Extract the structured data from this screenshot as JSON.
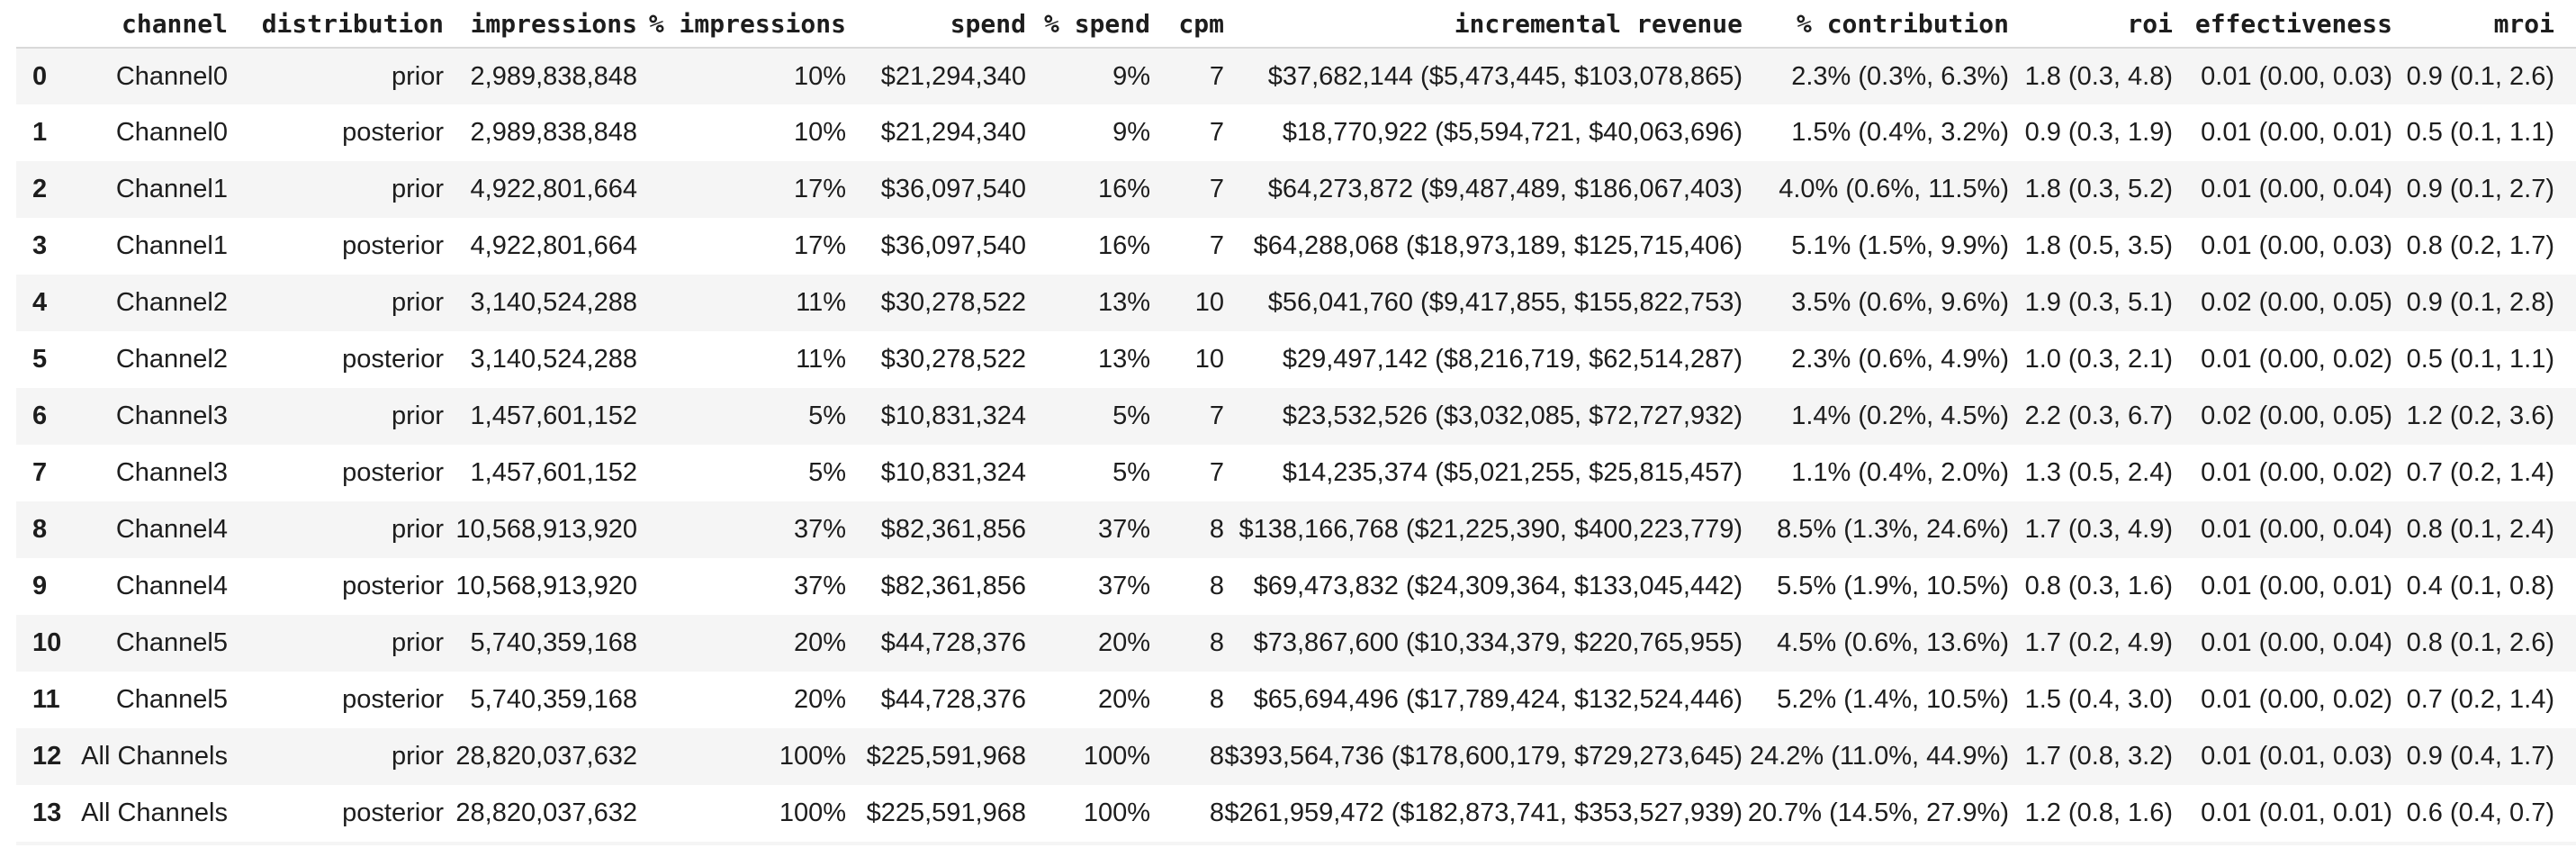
{
  "table": {
    "columns": [
      {
        "key": "index",
        "label": "",
        "align": "left"
      },
      {
        "key": "channel",
        "label": "channel",
        "align": "right"
      },
      {
        "key": "distribution",
        "label": "distribution",
        "align": "right"
      },
      {
        "key": "impressions",
        "label": "impressions",
        "align": "right"
      },
      {
        "key": "pct-impressions",
        "label": "% impressions",
        "align": "right"
      },
      {
        "key": "spend",
        "label": "spend",
        "align": "right"
      },
      {
        "key": "pct-spend",
        "label": "% spend",
        "align": "right"
      },
      {
        "key": "cpm",
        "label": "cpm",
        "align": "right"
      },
      {
        "key": "incremental-revenue",
        "label": "incremental revenue",
        "align": "right"
      },
      {
        "key": "pct-contribution",
        "label": "% contribution",
        "align": "right"
      },
      {
        "key": "roi",
        "label": "roi",
        "align": "right"
      },
      {
        "key": "effectiveness",
        "label": "effectiveness",
        "align": "right"
      },
      {
        "key": "mroi",
        "label": "mroi",
        "align": "right"
      }
    ],
    "rows": [
      [
        "0",
        "Channel0",
        "prior",
        "2,989,838,848",
        "10%",
        "$21,294,340",
        "9%",
        "7",
        "$37,682,144 ($5,473,445, $103,078,865)",
        "2.3% (0.3%, 6.3%)",
        "1.8 (0.3, 4.8)",
        "0.01 (0.00, 0.03)",
        "0.9 (0.1, 2.6)"
      ],
      [
        "1",
        "Channel0",
        "posterior",
        "2,989,838,848",
        "10%",
        "$21,294,340",
        "9%",
        "7",
        "$18,770,922 ($5,594,721, $40,063,696)",
        "1.5% (0.4%, 3.2%)",
        "0.9 (0.3, 1.9)",
        "0.01 (0.00, 0.01)",
        "0.5 (0.1, 1.1)"
      ],
      [
        "2",
        "Channel1",
        "prior",
        "4,922,801,664",
        "17%",
        "$36,097,540",
        "16%",
        "7",
        "$64,273,872 ($9,487,489, $186,067,403)",
        "4.0% (0.6%, 11.5%)",
        "1.8 (0.3, 5.2)",
        "0.01 (0.00, 0.04)",
        "0.9 (0.1, 2.7)"
      ],
      [
        "3",
        "Channel1",
        "posterior",
        "4,922,801,664",
        "17%",
        "$36,097,540",
        "16%",
        "7",
        "$64,288,068 ($18,973,189, $125,715,406)",
        "5.1% (1.5%, 9.9%)",
        "1.8 (0.5, 3.5)",
        "0.01 (0.00, 0.03)",
        "0.8 (0.2, 1.7)"
      ],
      [
        "4",
        "Channel2",
        "prior",
        "3,140,524,288",
        "11%",
        "$30,278,522",
        "13%",
        "10",
        "$56,041,760 ($9,417,855, $155,822,753)",
        "3.5% (0.6%, 9.6%)",
        "1.9 (0.3, 5.1)",
        "0.02 (0.00, 0.05)",
        "0.9 (0.1, 2.8)"
      ],
      [
        "5",
        "Channel2",
        "posterior",
        "3,140,524,288",
        "11%",
        "$30,278,522",
        "13%",
        "10",
        "$29,497,142 ($8,216,719, $62,514,287)",
        "2.3% (0.6%, 4.9%)",
        "1.0 (0.3, 2.1)",
        "0.01 (0.00, 0.02)",
        "0.5 (0.1, 1.1)"
      ],
      [
        "6",
        "Channel3",
        "prior",
        "1,457,601,152",
        "5%",
        "$10,831,324",
        "5%",
        "7",
        "$23,532,526 ($3,032,085, $72,727,932)",
        "1.4% (0.2%, 4.5%)",
        "2.2 (0.3, 6.7)",
        "0.02 (0.00, 0.05)",
        "1.2 (0.2, 3.6)"
      ],
      [
        "7",
        "Channel3",
        "posterior",
        "1,457,601,152",
        "5%",
        "$10,831,324",
        "5%",
        "7",
        "$14,235,374 ($5,021,255, $25,815,457)",
        "1.1% (0.4%, 2.0%)",
        "1.3 (0.5, 2.4)",
        "0.01 (0.00, 0.02)",
        "0.7 (0.2, 1.4)"
      ],
      [
        "8",
        "Channel4",
        "prior",
        "10,568,913,920",
        "37%",
        "$82,361,856",
        "37%",
        "8",
        "$138,166,768 ($21,225,390, $400,223,779)",
        "8.5% (1.3%, 24.6%)",
        "1.7 (0.3, 4.9)",
        "0.01 (0.00, 0.04)",
        "0.8 (0.1, 2.4)"
      ],
      [
        "9",
        "Channel4",
        "posterior",
        "10,568,913,920",
        "37%",
        "$82,361,856",
        "37%",
        "8",
        "$69,473,832 ($24,309,364, $133,045,442)",
        "5.5% (1.9%, 10.5%)",
        "0.8 (0.3, 1.6)",
        "0.01 (0.00, 0.01)",
        "0.4 (0.1, 0.8)"
      ],
      [
        "10",
        "Channel5",
        "prior",
        "5,740,359,168",
        "20%",
        "$44,728,376",
        "20%",
        "8",
        "$73,867,600 ($10,334,379, $220,765,955)",
        "4.5% (0.6%, 13.6%)",
        "1.7 (0.2, 4.9)",
        "0.01 (0.00, 0.04)",
        "0.8 (0.1, 2.6)"
      ],
      [
        "11",
        "Channel5",
        "posterior",
        "5,740,359,168",
        "20%",
        "$44,728,376",
        "20%",
        "8",
        "$65,694,496 ($17,789,424, $132,524,446)",
        "5.2% (1.4%, 10.5%)",
        "1.5 (0.4, 3.0)",
        "0.01 (0.00, 0.02)",
        "0.7 (0.2, 1.4)"
      ],
      [
        "12",
        "All Channels",
        "prior",
        "28,820,037,632",
        "100%",
        "$225,591,968",
        "100%",
        "8",
        "$393,564,736 ($178,600,179, $729,273,645)",
        "24.2% (11.0%, 44.9%)",
        "1.7 (0.8, 3.2)",
        "0.01 (0.01, 0.03)",
        "0.9 (0.4, 1.7)"
      ],
      [
        "13",
        "All Channels",
        "posterior",
        "28,820,037,632",
        "100%",
        "$225,591,968",
        "100%",
        "8",
        "$261,959,472 ($182,873,741, $353,527,939)",
        "20.7% (14.5%, 27.9%)",
        "1.2 (0.8, 1.6)",
        "0.01 (0.01, 0.01)",
        "0.6 (0.4, 0.7)"
      ]
    ],
    "style": {
      "stripe_color": "#f5f5f5",
      "header_border_color": "#d9d9d9",
      "text_color": "#1d1d1d"
    }
  }
}
